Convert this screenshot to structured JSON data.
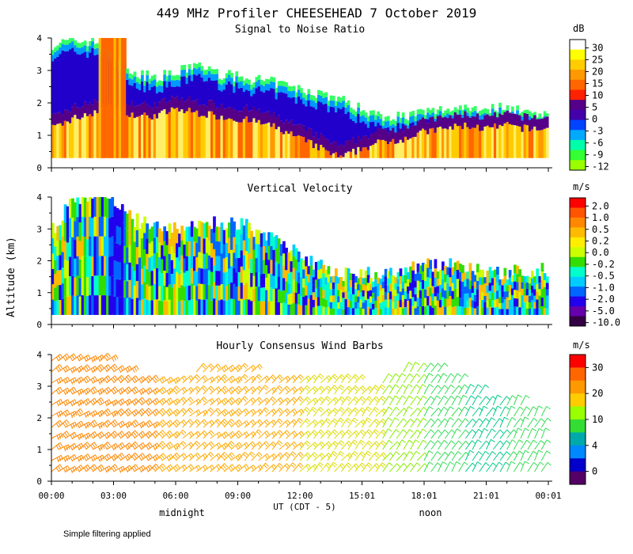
{
  "title": "449 MHz Profiler CHEESEHEAD  7 October 2019",
  "ylabel": "Altitude (km)",
  "xlabel": "UT  (CDT - 5)",
  "local_labels": [
    "midnight",
    "noon"
  ],
  "footer": "Simple filtering applied",
  "chart_data": [
    {
      "type": "heatmap",
      "title": "Signal to Noise Ratio",
      "unit": "dB",
      "x_ticks": [
        "00:00",
        "03:00",
        "06:00",
        "09:00",
        "12:00",
        "15:01",
        "18:01",
        "21:01",
        "00:01"
      ],
      "xlim_hours": [
        0,
        24
      ],
      "y_ticks": [
        "0",
        "1",
        "2",
        "3",
        "4"
      ],
      "ylim": [
        0,
        4
      ],
      "colorbar_labels": [
        "30",
        "25",
        "20",
        "15",
        "10",
        "5",
        "0",
        "-3",
        "-6",
        "-9",
        "-12"
      ],
      "colorbar_colors": [
        "#ffffff",
        "#ffff00",
        "#ffcc00",
        "#ff9900",
        "#ff6600",
        "#ff2200",
        "#550088",
        "#4400aa",
        "#0044ff",
        "#00aaff",
        "#00ffaa",
        "#33ff33",
        "#99ff00"
      ],
      "signal_top_km": [
        [
          0,
          3.8
        ],
        [
          1,
          3.9
        ],
        [
          2,
          3.9
        ],
        [
          3,
          3.6
        ],
        [
          4,
          2.9
        ],
        [
          5,
          2.8
        ],
        [
          6,
          2.9
        ],
        [
          7,
          3.2
        ],
        [
          8,
          2.9
        ],
        [
          9,
          2.8
        ],
        [
          10,
          2.7
        ],
        [
          11,
          2.6
        ],
        [
          12,
          2.4
        ],
        [
          13,
          2.3
        ],
        [
          14,
          2.1
        ],
        [
          15,
          1.8
        ],
        [
          16,
          1.6
        ],
        [
          17,
          1.6
        ],
        [
          18,
          1.7
        ],
        [
          19,
          1.8
        ],
        [
          20,
          1.9
        ],
        [
          21,
          1.8
        ],
        [
          22,
          1.9
        ],
        [
          23,
          1.7
        ],
        [
          24,
          1.7
        ]
      ],
      "strong_top_km": [
        [
          0,
          1.2
        ],
        [
          1,
          1.5
        ],
        [
          2,
          1.7
        ],
        [
          3,
          2.0
        ],
        [
          4,
          1.6
        ],
        [
          5,
          1.6
        ],
        [
          6,
          1.8
        ],
        [
          7,
          1.7
        ],
        [
          8,
          1.6
        ],
        [
          9,
          1.5
        ],
        [
          10,
          1.4
        ],
        [
          11,
          1.2
        ],
        [
          12,
          0.9
        ],
        [
          13,
          0.6
        ],
        [
          14,
          0.3
        ],
        [
          15,
          0.6
        ],
        [
          16,
          0.8
        ],
        [
          17,
          0.9
        ],
        [
          18,
          1.1
        ],
        [
          19,
          1.2
        ],
        [
          20,
          1.3
        ],
        [
          21,
          1.2
        ],
        [
          22,
          1.3
        ],
        [
          23,
          1.2
        ],
        [
          24,
          1.2
        ]
      ]
    },
    {
      "type": "heatmap",
      "title": "Vertical Velocity",
      "unit": "m/s",
      "x_ticks": [
        "00:00",
        "03:00",
        "06:00",
        "09:00",
        "12:00",
        "15:01",
        "18:01",
        "21:01",
        "00:01"
      ],
      "y_ticks": [
        "0",
        "1",
        "2",
        "3",
        "4"
      ],
      "ylim": [
        0,
        4
      ],
      "colorbar_labels": [
        "2.0",
        "1.0",
        "0.5",
        "0.2",
        "0.0",
        "-0.2",
        "-0.5",
        "-1.0",
        "-2.0",
        "-5.0",
        "-10.0"
      ],
      "colorbar_colors": [
        "#ff0000",
        "#ff5500",
        "#ff8800",
        "#ffbb00",
        "#ffee00",
        "#ccff00",
        "#33dd00",
        "#00ffcc",
        "#00ccff",
        "#0066ff",
        "#2200ee",
        "#6600aa",
        "#330044"
      ],
      "data_top_km": [
        [
          0,
          2.9
        ],
        [
          1,
          4.0
        ],
        [
          2,
          4.0
        ],
        [
          3,
          4.0
        ],
        [
          4,
          3.3
        ],
        [
          5,
          3.0
        ],
        [
          6,
          3.0
        ],
        [
          7,
          3.0
        ],
        [
          8,
          3.2
        ],
        [
          9,
          3.2
        ],
        [
          10,
          2.9
        ],
        [
          11,
          2.6
        ],
        [
          12,
          2.2
        ],
        [
          13,
          1.8
        ],
        [
          14,
          1.6
        ],
        [
          15,
          1.6
        ],
        [
          16,
          1.5
        ],
        [
          17,
          1.6
        ],
        [
          18,
          1.9
        ],
        [
          19,
          1.9
        ],
        [
          20,
          1.8
        ],
        [
          21,
          1.6
        ],
        [
          22,
          1.6
        ],
        [
          23,
          1.7
        ],
        [
          24,
          1.7
        ]
      ]
    },
    {
      "type": "wind_barbs",
      "title": "Hourly Consensus Wind Barbs",
      "unit": "m/s",
      "x_ticks": [
        "00:00",
        "03:00",
        "06:00",
        "09:00",
        "12:00",
        "15:01",
        "18:01",
        "21:01",
        "00:01"
      ],
      "y_ticks": [
        "0",
        "1",
        "2",
        "3",
        "4"
      ],
      "ylim": [
        0,
        4
      ],
      "colorbar_labels": [
        "30",
        "20",
        "10",
        "4",
        "0"
      ],
      "colorbar_colors": [
        "#ff0000",
        "#ff6600",
        "#ff9900",
        "#ffcc00",
        "#99ff00",
        "#33dd33",
        "#00aaaa",
        "#0088ff",
        "#0000cc",
        "#550066"
      ],
      "speed_by_hour": [
        [
          0,
          24
        ],
        [
          1,
          22
        ],
        [
          2,
          22
        ],
        [
          3,
          24
        ],
        [
          4,
          22
        ],
        [
          5,
          20
        ],
        [
          6,
          19
        ],
        [
          7,
          18
        ],
        [
          8,
          20
        ],
        [
          9,
          19
        ],
        [
          10,
          17
        ],
        [
          11,
          18
        ],
        [
          12,
          16
        ],
        [
          13,
          14
        ],
        [
          14,
          13
        ],
        [
          15,
          12
        ],
        [
          16,
          10
        ],
        [
          17,
          9
        ],
        [
          18,
          8
        ],
        [
          19,
          7
        ],
        [
          20,
          6
        ],
        [
          21,
          6
        ],
        [
          22,
          7
        ],
        [
          23,
          8
        ],
        [
          24,
          8
        ]
      ],
      "upper_barbs_hours": [
        4,
        5,
        6,
        7,
        8,
        9,
        10,
        11,
        12,
        13,
        14,
        15,
        16,
        17,
        18
      ],
      "upper_barbs_top_km": [
        3.4,
        3.3,
        3.1,
        3.6,
        3.8,
        3.6,
        3.3,
        3.3,
        3.1,
        3.1,
        3.1,
        2.9,
        3.1,
        3.8,
        3.6
      ]
    }
  ]
}
